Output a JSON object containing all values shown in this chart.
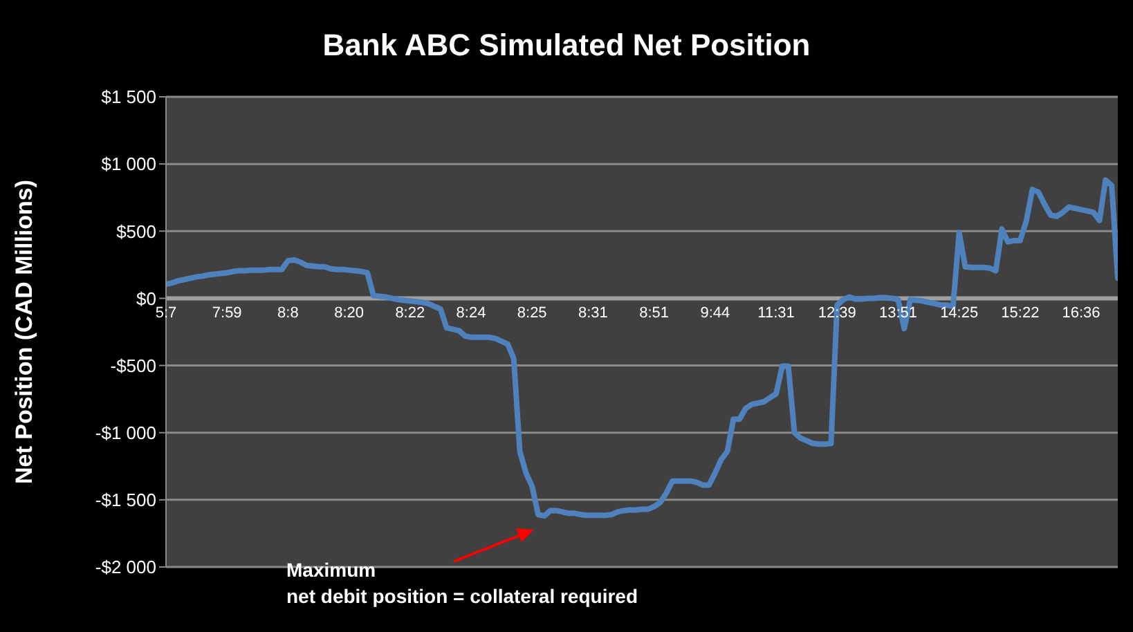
{
  "chart_data": {
    "type": "line",
    "title": "Bank ABC Simulated Net Position",
    "ylabel": "Net Position (CAD Millions)",
    "categories": [
      "5:7",
      null,
      null,
      null,
      null,
      null,
      null,
      null,
      null,
      null,
      "7:59",
      null,
      null,
      null,
      null,
      null,
      null,
      null,
      null,
      null,
      "8:8",
      null,
      null,
      null,
      null,
      null,
      null,
      null,
      null,
      null,
      "8:20",
      null,
      null,
      null,
      null,
      null,
      null,
      null,
      null,
      null,
      "8:22",
      null,
      null,
      null,
      null,
      null,
      null,
      null,
      null,
      null,
      "8:24",
      null,
      null,
      null,
      null,
      null,
      null,
      null,
      null,
      null,
      "8:25",
      null,
      null,
      null,
      null,
      null,
      null,
      null,
      null,
      null,
      "8:31",
      null,
      null,
      null,
      null,
      null,
      null,
      null,
      null,
      null,
      "8:51",
      null,
      null,
      null,
      null,
      null,
      null,
      null,
      null,
      null,
      "9:44",
      null,
      null,
      null,
      null,
      null,
      null,
      null,
      null,
      null,
      "11:31",
      null,
      null,
      null,
      null,
      null,
      null,
      null,
      null,
      null,
      "12:39",
      null,
      null,
      null,
      null,
      null,
      null,
      null,
      null,
      null,
      "13:51",
      null,
      null,
      null,
      null,
      null,
      null,
      null,
      null,
      null,
      "14:25",
      null,
      null,
      null,
      null,
      null,
      null,
      null,
      null,
      null,
      "15:22",
      null,
      null,
      null,
      null,
      null,
      null,
      null,
      null,
      null,
      "16:36",
      null,
      null,
      null,
      null,
      null,
      null
    ],
    "series": [
      {
        "color": "#4f81bd",
        "values": [
          105,
          115,
          130,
          140,
          150,
          160,
          165,
          175,
          180,
          185,
          190,
          200,
          205,
          205,
          210,
          210,
          210,
          215,
          215,
          215,
          280,
          285,
          270,
          245,
          240,
          235,
          235,
          220,
          215,
          215,
          210,
          205,
          200,
          190,
          20,
          15,
          10,
          0,
          -10,
          -15,
          -20,
          -25,
          -30,
          -40,
          -60,
          -80,
          -220,
          -230,
          -240,
          -280,
          -290,
          -290,
          -290,
          -290,
          -300,
          -320,
          -340,
          -450,
          -1140,
          -1300,
          -1400,
          -1610,
          -1620,
          -1580,
          -1580,
          -1590,
          -1600,
          -1600,
          -1610,
          -1615,
          -1615,
          -1615,
          -1615,
          -1610,
          -1590,
          -1580,
          -1575,
          -1575,
          -1570,
          -1570,
          -1550,
          -1520,
          -1450,
          -1360,
          -1360,
          -1360,
          -1360,
          -1370,
          -1390,
          -1390,
          -1300,
          -1200,
          -1140,
          -900,
          -900,
          -820,
          -790,
          -780,
          -770,
          -740,
          -710,
          -505,
          -505,
          -1000,
          -1040,
          -1060,
          -1080,
          -1085,
          -1085,
          -1080,
          -50,
          -10,
          10,
          -5,
          -5,
          0,
          0,
          5,
          5,
          0,
          -10,
          -225,
          -10,
          -15,
          -20,
          -30,
          -40,
          -50,
          -50,
          -60,
          490,
          235,
          230,
          230,
          230,
          225,
          205,
          515,
          420,
          430,
          430,
          575,
          810,
          790,
          700,
          620,
          610,
          640,
          680,
          670,
          660,
          650,
          640,
          580,
          880,
          840,
          150
        ]
      }
    ],
    "ylim": [
      -2000,
      1500
    ],
    "yticks": [
      {
        "value": -2000,
        "label": "-$2 000"
      },
      {
        "value": -1500,
        "label": "-$1 500"
      },
      {
        "value": -1000,
        "label": "-$1 000"
      },
      {
        "value": -500,
        "label": "-$500"
      },
      {
        "value": 0,
        "label": "$0"
      },
      {
        "value": 500,
        "label": "$500"
      },
      {
        "value": 1000,
        "label": "$1 000"
      },
      {
        "value": 1500,
        "label": "$1 500"
      }
    ],
    "grid": "y",
    "marker": "none",
    "line_style": "solid",
    "annotations": [
      "Maximum\nnet debit position = collateral required"
    ]
  }
}
